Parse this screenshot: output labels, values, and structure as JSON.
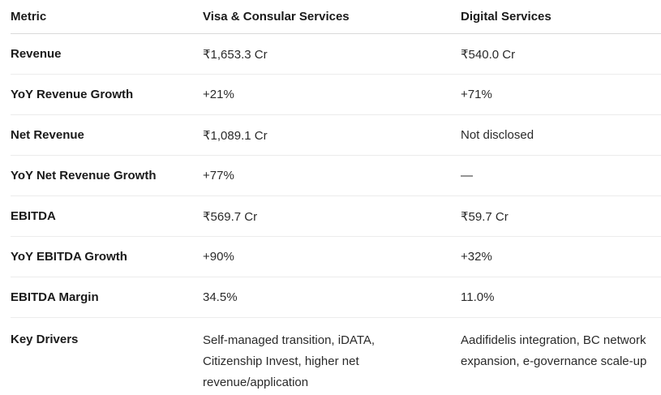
{
  "table": {
    "headers": [
      "Metric",
      "Visa & Consular Services",
      "Digital Services"
    ],
    "rows": [
      [
        "Revenue",
        "₹1,653.3 Cr",
        "₹540.0 Cr"
      ],
      [
        "YoY Revenue Growth",
        "+21%",
        "+71%"
      ],
      [
        "Net Revenue",
        "₹1,089.1 Cr",
        "Not disclosed"
      ],
      [
        "YoY Net Revenue Growth",
        "+77%",
        "—"
      ],
      [
        "EBITDA",
        "₹569.7 Cr",
        "₹59.7 Cr"
      ],
      [
        "YoY EBITDA Growth",
        "+90%",
        "+32%"
      ],
      [
        "EBITDA Margin",
        "34.5%",
        "11.0%"
      ],
      [
        "Key Drivers",
        "Self-managed transition, iDATA, Citizenship Invest, higher net revenue/application",
        "Aadifidelis integration, BC network expansion, e-governance scale-up"
      ]
    ]
  }
}
